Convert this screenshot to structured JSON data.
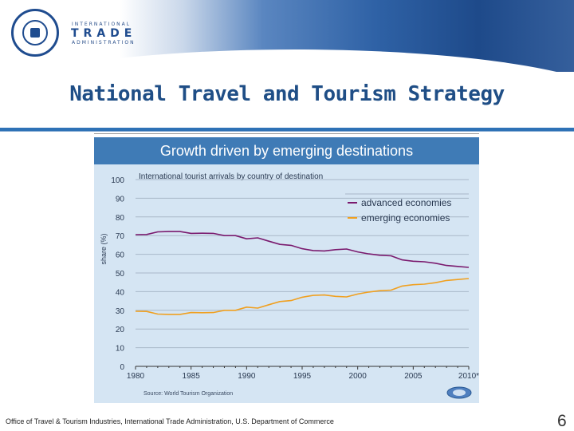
{
  "header": {
    "org_line1": "INTERNATIONAL",
    "org_line2": "TRADE",
    "org_line3": "ADMINISTRATION",
    "seal_icon": "department-of-commerce-seal"
  },
  "slide": {
    "title": "National Travel and Tourism Strategy",
    "footer": "Office of Travel & Tourism Industries, International Trade Administration, U.S. Department of Commerce",
    "page_number": "6"
  },
  "colors": {
    "banner": "#3f7bb6",
    "card": "#d5e5f3",
    "advanced": "#7a1a6e",
    "emerging": "#f0a020",
    "title": "#1f4e86"
  },
  "chart_data": {
    "type": "line",
    "title": "Growth driven by emerging destinations",
    "subtitle": "International tourist arrivals by country of destination",
    "ylabel": "share (%)",
    "xlabel": "",
    "x": [
      1980,
      1981,
      1982,
      1983,
      1984,
      1985,
      1986,
      1987,
      1988,
      1989,
      1990,
      1991,
      1992,
      1993,
      1994,
      1995,
      1996,
      1997,
      1998,
      1999,
      2000,
      2001,
      2002,
      2003,
      2004,
      2005,
      2006,
      2007,
      2008,
      2009,
      2010
    ],
    "xlim": [
      1980,
      2010
    ],
    "ylim": [
      0,
      100
    ],
    "yticks": [
      0,
      10,
      20,
      30,
      40,
      50,
      60,
      70,
      80,
      90,
      100
    ],
    "xtick_labels": [
      "1980",
      "1985",
      "1990",
      "1995",
      "2000",
      "2005",
      "2010*"
    ],
    "xtick_values": [
      1980,
      1985,
      1990,
      1995,
      2000,
      2005,
      2010
    ],
    "series": [
      {
        "name": "advanced economies",
        "color": "#7a1a6e",
        "values": [
          70.5,
          70.6,
          72,
          72.2,
          72.2,
          71.2,
          71.3,
          71.2,
          70,
          70,
          68.3,
          68.8,
          67,
          65.3,
          64.8,
          63,
          62,
          61.8,
          62.5,
          62.8,
          61.3,
          60.2,
          59.5,
          59.2,
          57,
          56.3,
          56,
          55.2,
          54,
          53.5,
          53
        ]
      },
      {
        "name": "emerging economies",
        "color": "#f0a020",
        "values": [
          29.5,
          29.4,
          28,
          27.8,
          27.8,
          28.8,
          28.7,
          28.8,
          30,
          30,
          31.7,
          31.2,
          33,
          34.7,
          35.2,
          37,
          38,
          38.2,
          37.5,
          37.2,
          38.7,
          39.8,
          40.5,
          40.8,
          43,
          43.7,
          44,
          44.8,
          46,
          46.5,
          47
        ]
      }
    ],
    "legend": "upper-right",
    "grid": "horizontal",
    "source": "Source: World Tourism Organization",
    "logo_icon": "unwto-logo"
  }
}
